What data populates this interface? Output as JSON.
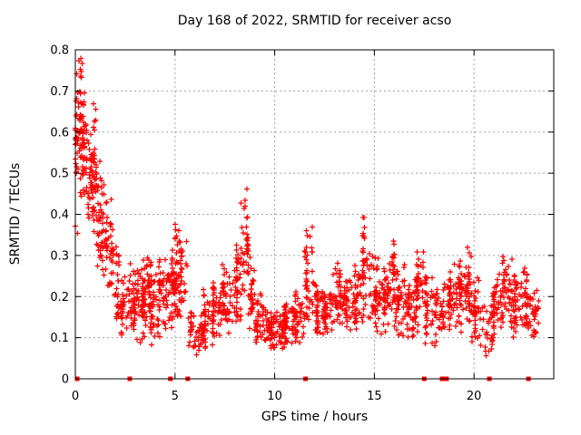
{
  "chart_data": {
    "type": "scatter",
    "title": "Day 168 of 2022, SRMTID for receiver acso",
    "xlabel": "GPS time / hours",
    "ylabel": "SRMTID / TECUs",
    "xlim": [
      0,
      24
    ],
    "ylim": [
      0,
      0.8
    ],
    "x_tick_values": [
      0,
      5,
      10,
      15,
      20
    ],
    "x_tick_labels": [
      "0",
      "5",
      "10",
      "15",
      "20"
    ],
    "y_tick_values": [
      0,
      0.1,
      0.2,
      0.3,
      0.4,
      0.5,
      0.6,
      0.7,
      0.8
    ],
    "y_tick_labels": [
      "0",
      "0.1",
      "0.2",
      "0.3",
      "0.4",
      "0.5",
      "0.6",
      "0.7",
      "0.8"
    ],
    "grid": {
      "show": true,
      "color": "#a0a0a0",
      "dash": "2 3"
    },
    "frame_color": "#000000",
    "marker": {
      "shape": "plus",
      "color": "#ff0000",
      "size": 7
    },
    "baseline_markers": {
      "shape": "filled-square",
      "color": "#ff0000",
      "size": 5,
      "hours": [
        0.09,
        2.73,
        4.77,
        5.64,
        11.55,
        17.5,
        18.4,
        18.62,
        20.77,
        22.73
      ]
    },
    "seed": 168,
    "density_bins": [
      [
        0.0,
        0.15,
        0.35,
        0.8,
        30
      ],
      [
        0.15,
        0.35,
        0.44,
        0.79,
        38
      ],
      [
        0.35,
        0.6,
        0.42,
        0.7,
        40
      ],
      [
        0.6,
        0.85,
        0.36,
        0.62,
        30
      ],
      [
        0.85,
        1.1,
        0.28,
        0.73,
        40
      ],
      [
        1.1,
        1.35,
        0.24,
        0.55,
        30
      ],
      [
        1.35,
        1.6,
        0.2,
        0.5,
        28
      ],
      [
        1.6,
        1.9,
        0.16,
        0.47,
        26
      ],
      [
        1.9,
        2.2,
        0.12,
        0.34,
        24
      ],
      [
        2.2,
        2.6,
        0.1,
        0.26,
        28
      ],
      [
        2.6,
        3.0,
        0.1,
        0.28,
        40
      ],
      [
        3.0,
        3.4,
        0.08,
        0.28,
        42
      ],
      [
        3.4,
        3.8,
        0.1,
        0.33,
        44
      ],
      [
        3.8,
        4.2,
        0.08,
        0.28,
        40
      ],
      [
        4.2,
        4.6,
        0.1,
        0.3,
        40
      ],
      [
        4.6,
        4.95,
        0.12,
        0.32,
        34
      ],
      [
        4.95,
        5.25,
        0.1,
        0.42,
        44
      ],
      [
        5.25,
        5.6,
        0.12,
        0.36,
        28
      ],
      [
        5.6,
        6.0,
        0.03,
        0.17,
        20
      ],
      [
        6.0,
        6.4,
        0.04,
        0.16,
        24
      ],
      [
        6.4,
        6.9,
        0.07,
        0.22,
        38
      ],
      [
        6.9,
        7.4,
        0.09,
        0.26,
        44
      ],
      [
        7.4,
        7.9,
        0.1,
        0.28,
        44
      ],
      [
        7.9,
        8.3,
        0.12,
        0.35,
        40
      ],
      [
        8.3,
        8.65,
        0.15,
        0.48,
        40
      ],
      [
        8.65,
        9.0,
        0.1,
        0.3,
        34
      ],
      [
        9.0,
        9.5,
        0.08,
        0.22,
        40
      ],
      [
        9.5,
        10.0,
        0.07,
        0.18,
        44
      ],
      [
        10.0,
        10.5,
        0.07,
        0.18,
        44
      ],
      [
        10.5,
        11.0,
        0.08,
        0.2,
        44
      ],
      [
        11.0,
        11.5,
        0.08,
        0.22,
        40
      ],
      [
        11.5,
        11.95,
        0.12,
        0.4,
        44
      ],
      [
        11.95,
        12.4,
        0.1,
        0.25,
        40
      ],
      [
        12.4,
        12.9,
        0.1,
        0.24,
        42
      ],
      [
        12.9,
        13.4,
        0.12,
        0.3,
        42
      ],
      [
        13.4,
        13.9,
        0.1,
        0.28,
        40
      ],
      [
        13.9,
        14.35,
        0.1,
        0.3,
        38
      ],
      [
        14.35,
        14.75,
        0.12,
        0.4,
        40
      ],
      [
        14.75,
        15.2,
        0.1,
        0.3,
        40
      ],
      [
        15.2,
        15.7,
        0.1,
        0.28,
        42
      ],
      [
        15.7,
        16.1,
        0.12,
        0.35,
        40
      ],
      [
        16.1,
        16.6,
        0.1,
        0.28,
        42
      ],
      [
        16.6,
        17.1,
        0.08,
        0.25,
        40
      ],
      [
        17.1,
        17.5,
        0.1,
        0.32,
        38
      ],
      [
        17.5,
        18.0,
        0.08,
        0.25,
        38
      ],
      [
        18.0,
        18.5,
        0.08,
        0.24,
        38
      ],
      [
        18.5,
        19.0,
        0.1,
        0.28,
        38
      ],
      [
        19.0,
        19.5,
        0.1,
        0.3,
        40
      ],
      [
        19.5,
        19.9,
        0.12,
        0.33,
        40
      ],
      [
        19.9,
        20.4,
        0.08,
        0.25,
        38
      ],
      [
        20.4,
        20.95,
        0.05,
        0.22,
        34
      ],
      [
        20.95,
        21.4,
        0.1,
        0.26,
        38
      ],
      [
        21.4,
        21.9,
        0.1,
        0.3,
        40
      ],
      [
        21.9,
        22.4,
        0.1,
        0.26,
        40
      ],
      [
        22.4,
        22.9,
        0.1,
        0.28,
        42
      ],
      [
        22.9,
        23.25,
        0.08,
        0.22,
        28
      ]
    ]
  }
}
